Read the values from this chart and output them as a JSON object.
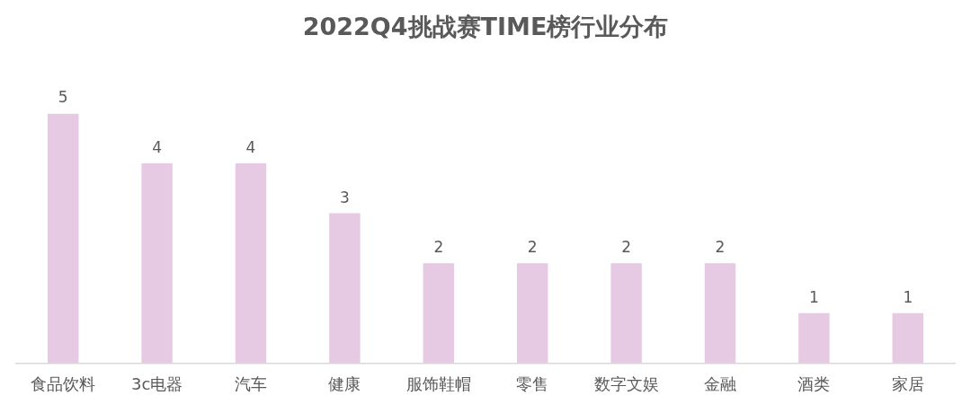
{
  "chart_data": {
    "type": "bar",
    "title": "2022Q4挑战赛TIME榜行业分布",
    "categories": [
      "食品饮料",
      "3c电器",
      "汽车",
      "健康",
      "服饰鞋帽",
      "零售",
      "数字文娱",
      "金融",
      "酒类",
      "家居"
    ],
    "values": [
      5,
      4,
      4,
      3,
      2,
      2,
      2,
      2,
      1,
      1
    ],
    "color": "#e6c9e3",
    "data_labels": true,
    "tick_labels": "x"
  }
}
